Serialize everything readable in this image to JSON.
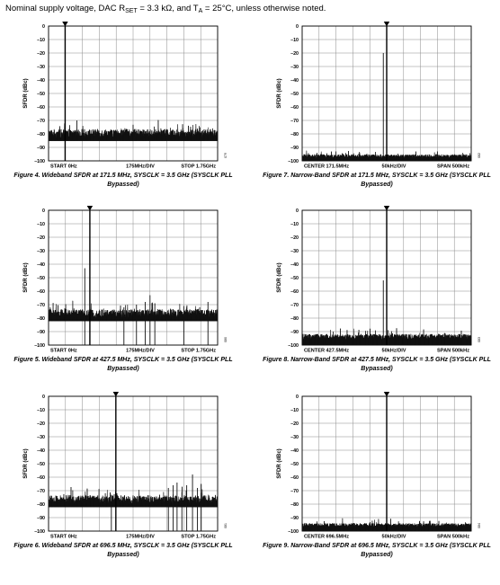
{
  "header": {
    "text_pre": "Nominal supply voltage, DAC R",
    "text_sub": "SET",
    "text_mid": " = 3.3 kΩ, and T",
    "text_sub2": "A",
    "text_post": " = 25°C, unless otherwise noted."
  },
  "chart_data": [
    {
      "type": "line",
      "figure": "Figure 4. Wideband SFDR at 171.5 MHz, SYSCLK = 3.5 GHz (SYSCLK PLL Bypassed)",
      "caption_line1": "Figure 4. Wideband SFDR at 171.5 MHz, SYSCLK = 3.5 GHz (SYSCLK PLL",
      "caption_line2": "Bypassed)",
      "ylabel": "SFDR (dBc)",
      "ylim": [
        -100,
        0
      ],
      "yticks": [
        "0",
        "–10",
        "–20",
        "–30",
        "–40",
        "–50",
        "–60",
        "–70",
        "–80",
        "–90",
        "–100"
      ],
      "x_left": "START 0Hz",
      "x_center": "175MHz/DIV",
      "x_right": "STOP 1.75GHz",
      "side_code": "079",
      "grid": true,
      "xrange": [
        0,
        1750
      ],
      "marker_x": 171.5,
      "noise_floor": -80,
      "noise_spread": 4,
      "carrier": {
        "x": 171.5,
        "y": 0
      },
      "spurs": []
    },
    {
      "type": "line",
      "figure": "Figure 5. Wideband SFDR at 427.5 MHz, SYSCLK = 3.5 GHz (SYSCLK PLL Bypassed)",
      "caption_line1": "Figure 5. Wideband SFDR at 427.5 MHz, SYSCLK = 3.5 GHz (SYSCLK PLL",
      "caption_line2": "Bypassed)",
      "ylabel": "SFDR (dBc)",
      "ylim": [
        -100,
        0
      ],
      "yticks": [
        "0",
        "–10",
        "–20",
        "–30",
        "–40",
        "–50",
        "–60",
        "–70",
        "–80",
        "–90",
        "–100"
      ],
      "x_left": "START 0Hz",
      "x_center": "175MHz/DIV",
      "x_right": "STOP 1.75GHz",
      "side_code": "080",
      "grid": true,
      "xrange": [
        0,
        1750
      ],
      "marker_x": 427.5,
      "noise_floor": -77,
      "noise_spread": 4,
      "carrier": {
        "x": 427.5,
        "y": 0
      },
      "spurs": [
        {
          "x": 375,
          "y": -43
        },
        {
          "x": 780,
          "y": -72
        },
        {
          "x": 910,
          "y": -70
        },
        {
          "x": 1000,
          "y": -68
        },
        {
          "x": 1050,
          "y": -63
        },
        {
          "x": 1100,
          "y": -69
        },
        {
          "x": 1400,
          "y": -71
        },
        {
          "x": 1650,
          "y": -68
        }
      ]
    },
    {
      "type": "line",
      "figure": "Figure 6. Wideband SFDR at 696.5 MHz, SYSCLK = 3.5 GHz (SYSCLK PLL Bypassed)",
      "caption_line1": "Figure 6. Wideband SFDR at 696.5 MHz, SYSCLK = 3.5 GHz (SYSCLK PLL",
      "caption_line2": "Bypassed)",
      "ylabel": "SFDR (dBc)",
      "ylim": [
        -100,
        0
      ],
      "yticks": [
        "0",
        "–10",
        "–20",
        "–30",
        "–40",
        "–50",
        "–60",
        "–70",
        "–80",
        "–90",
        "–100"
      ],
      "x_left": "START 0Hz",
      "x_center": "175MHz/DIV",
      "x_right": "STOP 1.75GHz",
      "side_code": "081",
      "grid": true,
      "xrange": [
        0,
        1750
      ],
      "marker_x": 696.5,
      "noise_floor": -77,
      "noise_spread": 4,
      "carrier": {
        "x": 696.5,
        "y": 0
      },
      "spurs": [
        {
          "x": 650,
          "y": -73
        },
        {
          "x": 1240,
          "y": -68
        },
        {
          "x": 1290,
          "y": -66
        },
        {
          "x": 1330,
          "y": -64
        },
        {
          "x": 1380,
          "y": -71
        },
        {
          "x": 1430,
          "y": -66
        },
        {
          "x": 1490,
          "y": -58
        },
        {
          "x": 1540,
          "y": -68
        },
        {
          "x": 1580,
          "y": -65
        }
      ]
    },
    {
      "type": "line",
      "figure": "Figure 7. Narrow-Band SFDR at 171.5 MHz, SYSCLK = 3.5 GHz (SYSCLK PLL Bypassed)",
      "caption_line1": "Figure 7. Narrow-Band SFDR at 171.5 MHz, SYSCLK = 3.5 GHz (SYSCLK PLL",
      "caption_line2": "Bypassed)",
      "ylabel": "SFDR (dBc)",
      "ylim": [
        -100,
        0
      ],
      "yticks": [
        "0",
        "–10",
        "–20",
        "–30",
        "–40",
        "–50",
        "–60",
        "–70",
        "–80",
        "–90",
        "–100"
      ],
      "x_left": "CENTER 171.5MHz",
      "x_center": "50kHz/DIV",
      "x_right": "SPAN 500kHz",
      "side_code": "082",
      "grid": true,
      "xrange": [
        -250,
        250
      ],
      "marker_x": 0,
      "noise_floor": -98,
      "noise_spread": 2,
      "carrier": {
        "x": 0,
        "y": 0
      },
      "spurs": [
        {
          "x": -10,
          "y": -20
        },
        {
          "x": -150,
          "y": -93
        },
        {
          "x": 150,
          "y": -93
        }
      ]
    },
    {
      "type": "line",
      "figure": "Figure 8. Narrow-Band SFDR at 427.5 MHz, SYSCLK = 3.5 GHz (SYSCLK PLL Bypassed)",
      "caption_line1": "Figure 8. Narrow-Band SFDR at 427.5 MHz, SYSCLK = 3.5 GHz (SYSCLK PLL",
      "caption_line2": "Bypassed)",
      "ylabel": "SFDR (dBc)",
      "ylim": [
        -100,
        0
      ],
      "yticks": [
        "0",
        "–10",
        "–20",
        "–30",
        "–40",
        "–50",
        "–60",
        "–70",
        "–80",
        "–90",
        "–100"
      ],
      "x_left": "CENTER 427.5MHz",
      "x_center": "50kHz/DIV",
      "x_right": "SPAN 500kHz",
      "side_code": "083",
      "grid": true,
      "xrange": [
        -250,
        250
      ],
      "marker_x": 0,
      "noise_floor": -96,
      "noise_spread": 3,
      "carrier": {
        "x": 0,
        "y": 0
      },
      "spurs": [
        {
          "x": -10,
          "y": -52
        },
        {
          "x": -210,
          "y": -92
        },
        {
          "x": -60,
          "y": -92
        }
      ]
    },
    {
      "type": "line",
      "figure": "Figure 9. Narrow-Band SFDR at 696.5 MHz, SYSCLK = 3.5 GHz (SYSCLK PLL Bypassed)",
      "caption_line1": "Figure 9. Narrow-Band SFDR at 696.5 MHz, SYSCLK = 3.5 GHz (SYSCLK PLL",
      "caption_line2": "Bypassed)",
      "ylabel": "SFDR (dBc)",
      "ylim": [
        -100,
        0
      ],
      "yticks": [
        "0",
        "–10",
        "–20",
        "–30",
        "–40",
        "–50",
        "–60",
        "–70",
        "–80",
        "–90",
        "–100"
      ],
      "x_left": "CENTER 696.5MHz",
      "x_center": "50kHz/DIV",
      "x_right": "SPAN 500kHz",
      "side_code": "084",
      "grid": true,
      "xrange": [
        -250,
        250
      ],
      "marker_x": 0,
      "noise_floor": -97,
      "noise_spread": 2,
      "carrier": {
        "x": 0,
        "y": 0
      },
      "spurs": [
        {
          "x": -100,
          "y": -94
        },
        {
          "x": 100,
          "y": -94
        }
      ]
    }
  ]
}
